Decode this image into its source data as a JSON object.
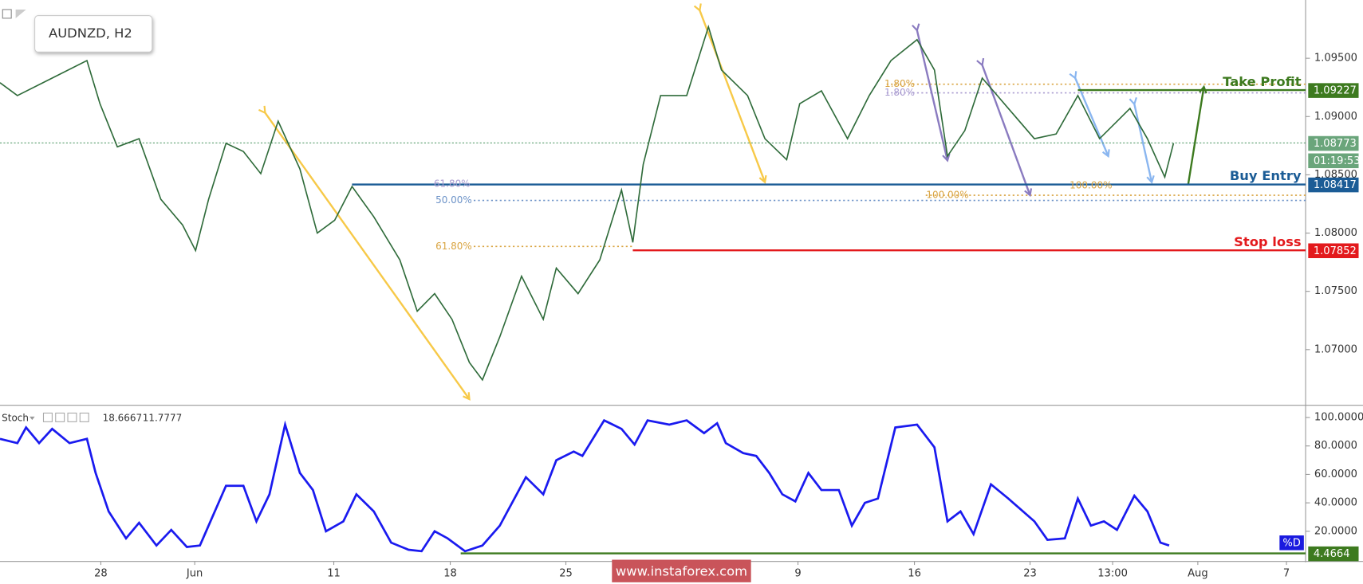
{
  "chart_data": [
    {
      "type": "line",
      "title": "AUDNZD, H2",
      "color": "#2f6b3a",
      "x": [
        0,
        4,
        12,
        20,
        23,
        27,
        32,
        37,
        42,
        45,
        48,
        52,
        56,
        60,
        64,
        69,
        73,
        77,
        81,
        86,
        92,
        96,
        100,
        104,
        108,
        111,
        115,
        120,
        125,
        128,
        133,
        138,
        143,
        145.6,
        148,
        152,
        158,
        163,
        166,
        172,
        176,
        181,
        184,
        189,
        195,
        200,
        205,
        211,
        215,
        218,
        222,
        226,
        232,
        238,
        243,
        248,
        253,
        260,
        264,
        268,
        270
      ],
      "values": [
        1.0929,
        1.0918,
        1.0933,
        1.0948,
        1.0911,
        1.0874,
        1.0881,
        1.0829,
        1.0807,
        1.0785,
        1.0829,
        1.0877,
        1.087,
        1.0851,
        1.0896,
        1.0855,
        1.08,
        1.0811,
        1.084,
        1.0814,
        1.0777,
        1.0733,
        1.0748,
        1.0726,
        1.0689,
        1.0674,
        1.0711,
        1.0763,
        1.0726,
        1.077,
        1.0748,
        1.0777,
        1.0837,
        1.0792,
        1.0859,
        1.0918,
        1.0918,
        1.0977,
        1.094,
        1.0918,
        1.0881,
        1.0863,
        1.0911,
        1.0922,
        1.0881,
        1.0918,
        1.0948,
        1.0966,
        1.094,
        1.0866,
        1.0888,
        1.0933,
        1.0907,
        1.0881,
        1.0885,
        1.0918,
        1.0881,
        1.0907,
        1.0881,
        1.0848,
        1.0877
      ],
      "xlim": [
        0,
        300.4
      ],
      "xticks": [
        {
          "value": 23.2,
          "label": "28"
        },
        {
          "value": 44.8,
          "label": "Jun"
        },
        {
          "value": 76.8,
          "label": "11"
        },
        {
          "value": 103.6,
          "label": "18"
        },
        {
          "value": 130.2,
          "label": "25"
        },
        {
          "value": 183.6,
          "label": "9"
        },
        {
          "value": 210.4,
          "label": "16"
        },
        {
          "value": 237,
          "label": "23"
        },
        {
          "value": 256,
          "label": "13:00"
        },
        {
          "value": 275.6,
          "label": "Aug"
        },
        {
          "value": 296,
          "label": "7"
        }
      ],
      "ylim": [
        1.0653,
        1.1
      ],
      "yticks": [
        {
          "value": 1.07,
          "label": "1.07000"
        },
        {
          "value": 1.075,
          "label": "1.07500"
        },
        {
          "value": 1.08,
          "label": "1.08000"
        },
        {
          "value": 1.085,
          "label": "1.08500"
        },
        {
          "value": 1.09,
          "label": "1.09000"
        },
        {
          "value": 1.095,
          "label": "1.09500"
        }
      ],
      "levels": [
        {
          "label": "Take Profit",
          "value": 1.09227,
          "color": "#3d7a1f"
        },
        {
          "label": "Buy Entry",
          "value": 1.08417,
          "color": "#1b5c96"
        },
        {
          "label": "Stop loss",
          "value": 1.07852,
          "color": "#e3191c"
        }
      ],
      "current_price": 1.08773,
      "countdown": "01:19:53",
      "fib_labels": [
        "61.80%",
        "50.00%",
        "61.80%",
        "1.80%",
        "1.80%",
        "100.00%",
        "100.00%"
      ]
    },
    {
      "type": "line",
      "title": "Stoch",
      "color": "#1a1aef",
      "readouts": [
        18.6667,
        11.7777
      ],
      "series_label": "%D",
      "level": 4.4664,
      "x": [
        0,
        4,
        6,
        9,
        12,
        16,
        20,
        22,
        25,
        29,
        32,
        36,
        39.4,
        43,
        46,
        49,
        52,
        56,
        59,
        62,
        65.6,
        69,
        72,
        75,
        79,
        82,
        86,
        90,
        94,
        97,
        100,
        103,
        107,
        111,
        115,
        121,
        125,
        128,
        132,
        134,
        139,
        143,
        146,
        149,
        154,
        158,
        162,
        165,
        167,
        171,
        174,
        177,
        180,
        183,
        186,
        189,
        193,
        196,
        199,
        202,
        206,
        211,
        215,
        218,
        221,
        224,
        228,
        232,
        238,
        241,
        245,
        248,
        251,
        254,
        257,
        261,
        264,
        267,
        269
      ],
      "values": [
        85,
        82,
        93,
        82,
        92,
        82,
        85,
        61,
        34,
        15,
        26,
        10,
        21,
        9,
        10,
        31,
        52,
        52,
        27,
        46,
        95,
        61,
        49,
        20,
        27,
        46,
        34,
        12,
        7,
        6,
        20,
        15,
        6,
        10,
        24,
        58,
        46,
        70,
        76,
        73,
        98,
        92,
        81,
        98,
        95,
        98,
        89,
        96,
        82,
        75,
        73,
        61,
        46,
        41,
        61,
        49,
        49,
        24,
        40,
        43,
        93,
        95,
        79,
        27,
        34,
        18,
        53,
        43,
        27,
        14,
        15,
        43,
        24,
        27,
        21,
        45,
        34,
        12,
        10
      ],
      "ylim": [
        0,
        108
      ],
      "yticks": [
        {
          "value": 20,
          "label": "20.0000"
        },
        {
          "value": 40,
          "label": "40.0000"
        },
        {
          "value": 60,
          "label": "60.0000"
        },
        {
          "value": 80,
          "label": "80.0000"
        },
        {
          "value": 100,
          "label": "100.0000"
        }
      ]
    }
  ],
  "watermark": "www.instaforex.com"
}
